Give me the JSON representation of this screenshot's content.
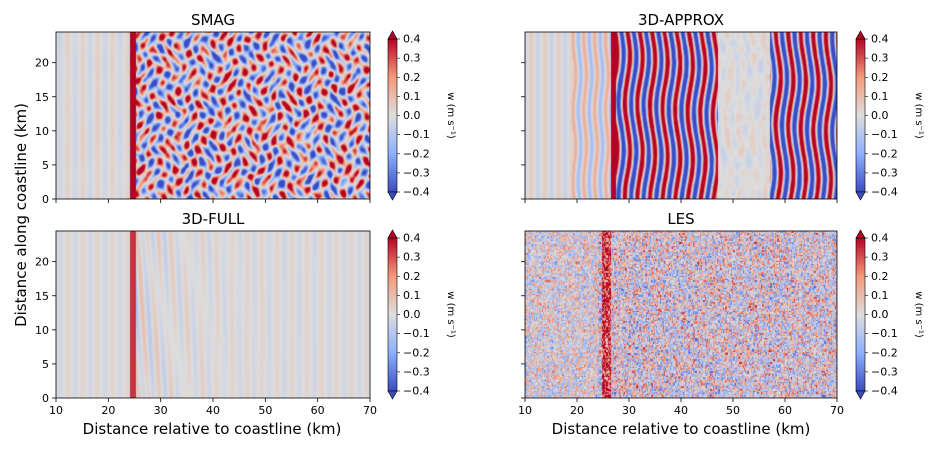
{
  "figure": {
    "ylabel": "Distance along coastline (km)",
    "xlabel": "Distance relative to coastline (km)",
    "colorbar_label": "w (m s⁻¹)",
    "colormap": [
      "#3b4cc0",
      "#dddddd",
      "#b40426"
    ]
  },
  "chart_data": [
    {
      "type": "heatmap",
      "title": "SMAG",
      "xlim": [
        10,
        70
      ],
      "ylim": [
        0,
        24.5
      ],
      "xticks": [
        10,
        20,
        30,
        40,
        50,
        60,
        70
      ],
      "yticks": [
        0,
        5,
        10,
        15,
        20
      ],
      "colorbar": {
        "label": "w (m s⁻¹)",
        "range": [
          -0.4,
          0.4
        ],
        "ticks": [
          "0.4",
          "0.3",
          "0.2",
          "0.1",
          "0.0",
          "−0.1",
          "−0.2",
          "−0.3",
          "−0.4"
        ]
      },
      "pattern": "weak faint stripes for x<24; sharp front at x≈24; strong cellular convection 24–70"
    },
    {
      "type": "heatmap",
      "title": "3D-APPROX",
      "xlim": [
        10,
        70
      ],
      "ylim": [
        0,
        24.5
      ],
      "xticks": [
        10,
        20,
        30,
        40,
        50,
        60,
        70
      ],
      "yticks": [
        0,
        5,
        10,
        15,
        20
      ],
      "colorbar": {
        "label": "w (m s⁻¹)",
        "range": [
          -0.4,
          0.4
        ],
        "ticks": [
          "0.4",
          "0.3",
          "0.2",
          "0.1",
          "0.0",
          "−0.1",
          "−0.2",
          "−0.3",
          "−0.4"
        ]
      },
      "pattern": "faint stripes x<26; wavy along-coast rolls 26–47; calm 47–57; rolls 57–70"
    },
    {
      "type": "heatmap",
      "title": "3D-FULL",
      "xlim": [
        10,
        70
      ],
      "ylim": [
        0,
        24.5
      ],
      "xticks": [
        10,
        20,
        30,
        40,
        50,
        60,
        70
      ],
      "yticks": [
        0,
        5,
        10,
        15,
        20
      ],
      "colorbar": {
        "label": "w (m s⁻¹)",
        "range": [
          -0.4,
          0.4
        ],
        "ticks": [
          "0.4",
          "0.3",
          "0.2",
          "0.1",
          "0.0",
          "−0.1",
          "−0.2",
          "−0.3",
          "−0.4"
        ]
      },
      "pattern": "near-zero field with narrow positive band at x≈24.5 and faint waves downstream"
    },
    {
      "type": "heatmap",
      "title": "LES",
      "xlim": [
        10,
        70
      ],
      "ylim": [
        0,
        24.5
      ],
      "xticks": [
        10,
        20,
        30,
        40,
        50,
        60,
        70
      ],
      "yticks": [
        0,
        5,
        10,
        15,
        20
      ],
      "colorbar": {
        "label": "w (m s⁻¹)",
        "range": [
          -0.4,
          0.4
        ],
        "ticks": [
          "0.4",
          "0.3",
          "0.2",
          "0.1",
          "0.0",
          "−0.1",
          "−0.2",
          "−0.3",
          "−0.4"
        ]
      },
      "pattern": "fine-scale turbulent noise everywhere; stronger updraft band near x≈26"
    }
  ]
}
